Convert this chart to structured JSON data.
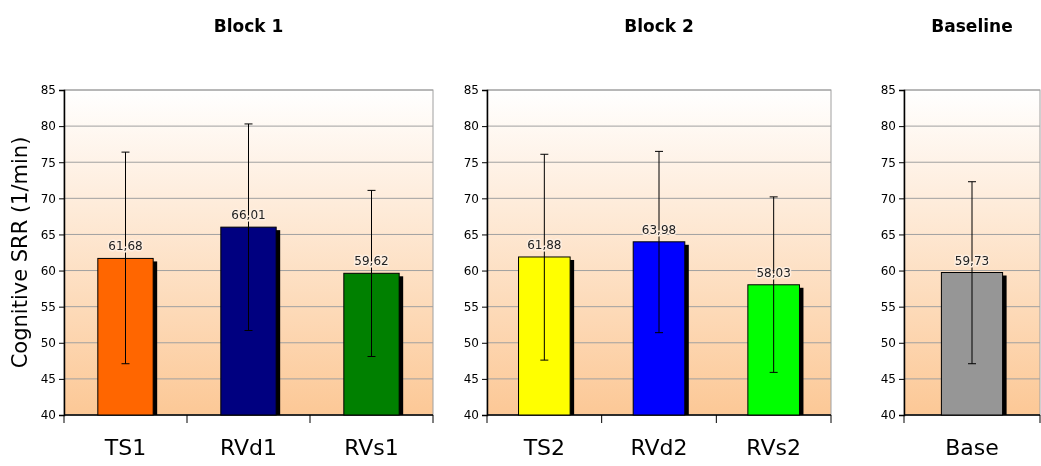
{
  "chart_data": [
    {
      "type": "bar",
      "title": "Block 1",
      "ylabel": "Cognitive SRR (1/min)",
      "categories": [
        "TS1",
        "RVd1",
        "RVs1"
      ],
      "values": [
        61.68,
        66.01,
        59.62
      ],
      "colors": [
        "#ff6600",
        "#000080",
        "#008000"
      ],
      "errors": [
        [
          47.1,
          76.4
        ],
        [
          51.7,
          80.3
        ],
        [
          48.1,
          71.1
        ]
      ],
      "value_labels": [
        "61,68",
        "66,01",
        "59,62"
      ],
      "ylim": [
        40,
        85
      ],
      "yticks": [
        40,
        45,
        50,
        55,
        60,
        65,
        70,
        75,
        80,
        85
      ],
      "grid": "y"
    },
    {
      "type": "bar",
      "title": "Block 2",
      "categories": [
        "TS2",
        "RVd2",
        "RVs2"
      ],
      "values": [
        61.88,
        63.98,
        58.03
      ],
      "colors": [
        "#ffff00",
        "#0000ff",
        "#00ff00"
      ],
      "errors": [
        [
          47.6,
          76.1
        ],
        [
          51.4,
          76.5
        ],
        [
          45.9,
          70.2
        ]
      ],
      "value_labels": [
        "61,88",
        "63,98",
        "58,03"
      ],
      "ylim": [
        40,
        85
      ],
      "yticks": [
        40,
        45,
        50,
        55,
        60,
        65,
        70,
        75,
        80,
        85
      ],
      "grid": "y"
    },
    {
      "type": "bar",
      "title": "Baseline",
      "categories": [
        "Base"
      ],
      "values": [
        59.73
      ],
      "colors": [
        "#969696"
      ],
      "errors": [
        [
          47.1,
          72.3
        ]
      ],
      "value_labels": [
        "59,73"
      ],
      "ylim": [
        40,
        85
      ],
      "yticks": [
        40,
        45,
        50,
        55,
        60,
        65,
        70,
        75,
        80,
        85
      ],
      "grid": "y"
    }
  ]
}
